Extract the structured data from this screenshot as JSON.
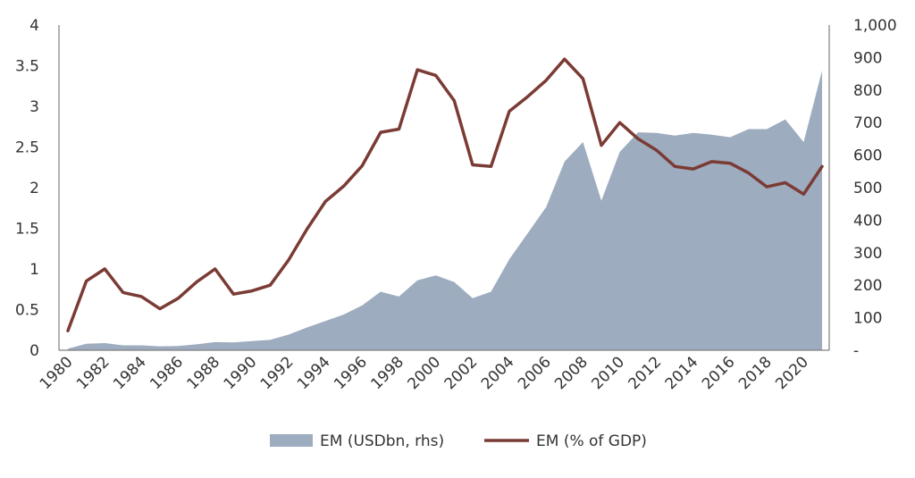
{
  "chart_data": {
    "type": "area+line",
    "title": "",
    "xlabel": "",
    "ylabel_left": "",
    "ylabel_right": "",
    "x": [
      1980,
      1981,
      1982,
      1983,
      1984,
      1985,
      1986,
      1987,
      1988,
      1989,
      1990,
      1991,
      1992,
      1993,
      1994,
      1995,
      1996,
      1997,
      1998,
      1999,
      2000,
      2001,
      2002,
      2003,
      2004,
      2005,
      2006,
      2007,
      2008,
      2009,
      2010,
      2011,
      2012,
      2013,
      2014,
      2015,
      2016,
      2017,
      2018,
      2019,
      2020,
      2021
    ],
    "x_tick_labels": [
      "1980",
      "1982",
      "1984",
      "1986",
      "1988",
      "1990",
      "1992",
      "1994",
      "1996",
      "1998",
      "2000",
      "2002",
      "2004",
      "2006",
      "2008",
      "2010",
      "2012",
      "2014",
      "2016",
      "2018",
      "2020"
    ],
    "y_left_ticks": [
      "0",
      "0.5",
      "1",
      "1.5",
      "2",
      "2.5",
      "3",
      "3.5",
      "4"
    ],
    "y_left_range": [
      0,
      4
    ],
    "y_right_ticks": [
      "-",
      "100",
      "200",
      "300",
      "400",
      "500",
      "600",
      "700",
      "800",
      "900",
      "1,000"
    ],
    "y_right_range": [
      0,
      1000
    ],
    "grid": false,
    "legend_position": "bottom",
    "series": [
      {
        "name": "EM (USDbn, rhs)",
        "kind": "area",
        "axis": "right",
        "color": "#9eacbf",
        "values": [
          5,
          20,
          22,
          15,
          15,
          12,
          13,
          18,
          25,
          24,
          28,
          32,
          48,
          70,
          90,
          110,
          138,
          180,
          165,
          215,
          230,
          210,
          160,
          180,
          280,
          360,
          440,
          580,
          640,
          460,
          610,
          670,
          668,
          660,
          668,
          663,
          655,
          680,
          680,
          710,
          640,
          860
        ]
      },
      {
        "name": "EM (% of GDP)",
        "kind": "line",
        "axis": "left",
        "color": "#7b3b35",
        "values": [
          0.24,
          0.85,
          1.0,
          0.71,
          0.66,
          0.51,
          0.64,
          0.84,
          1.0,
          0.69,
          0.73,
          0.8,
          1.11,
          1.49,
          1.83,
          2.02,
          2.27,
          2.68,
          2.72,
          3.45,
          3.38,
          3.07,
          2.28,
          2.26,
          2.94,
          3.12,
          3.32,
          3.58,
          3.34,
          2.52,
          2.8,
          2.6,
          2.46,
          2.26,
          2.23,
          2.32,
          2.3,
          2.18,
          2.01,
          2.06,
          1.92,
          2.26
        ]
      }
    ]
  }
}
